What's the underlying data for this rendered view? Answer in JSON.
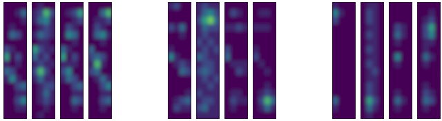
{
  "chart_data": [
    {
      "type": "heatmap",
      "color": "viridis",
      "zlim": [
        0,
        9
      ],
      "tick_labels": false,
      "cells": [
        [
          0,
          0,
          0,
          0
        ],
        [
          0,
          0,
          1,
          3
        ],
        [
          0,
          0,
          0,
          1
        ],
        [
          0,
          1,
          0,
          0
        ],
        [
          0,
          3,
          2,
          0
        ],
        [
          0,
          0,
          0,
          0
        ],
        [
          2,
          1,
          0,
          0
        ],
        [
          5,
          0,
          2,
          0
        ],
        [
          1,
          0,
          1,
          0
        ],
        [
          3,
          2,
          0,
          0
        ],
        [
          1,
          4,
          1,
          0
        ],
        [
          0,
          0,
          2,
          3
        ],
        [
          0,
          0,
          1,
          1
        ],
        [
          0,
          0,
          2,
          4
        ],
        [
          0,
          0,
          1,
          1
        ],
        [
          0,
          0,
          0,
          0
        ]
      ]
    },
    {
      "type": "heatmap",
      "color": "viridis",
      "zlim": [
        0,
        9
      ],
      "tick_labels": false,
      "cells": [
        [
          0,
          1,
          0,
          0
        ],
        [
          1,
          2,
          6,
          2
        ],
        [
          1,
          3,
          4,
          1
        ],
        [
          0,
          1,
          2,
          1
        ],
        [
          1,
          3,
          2,
          1
        ],
        [
          0,
          1,
          1,
          0
        ],
        [
          5,
          2,
          1,
          1
        ],
        [
          3,
          1,
          2,
          0
        ],
        [
          1,
          2,
          1,
          1
        ],
        [
          2,
          6,
          2,
          0
        ],
        [
          1,
          3,
          1,
          1
        ],
        [
          0,
          1,
          2,
          2
        ],
        [
          0,
          1,
          3,
          1
        ],
        [
          0,
          1,
          2,
          1
        ],
        [
          0,
          0,
          1,
          0
        ],
        [
          0,
          1,
          0,
          0
        ]
      ]
    },
    {
      "type": "heatmap",
      "color": "viridis",
      "zlim": [
        0,
        9
      ],
      "tick_labels": false,
      "cells": [
        [
          0,
          0,
          0,
          0
        ],
        [
          0,
          1,
          2,
          5
        ],
        [
          0,
          0,
          1,
          2
        ],
        [
          0,
          2,
          1,
          0
        ],
        [
          0,
          4,
          3,
          0
        ],
        [
          0,
          0,
          1,
          0
        ],
        [
          3,
          1,
          0,
          0
        ],
        [
          5,
          0,
          2,
          0
        ],
        [
          1,
          1,
          1,
          0
        ],
        [
          2,
          4,
          0,
          0
        ],
        [
          1,
          3,
          2,
          0
        ],
        [
          0,
          0,
          2,
          3
        ],
        [
          0,
          0,
          1,
          1
        ],
        [
          0,
          0,
          3,
          2
        ],
        [
          0,
          0,
          1,
          0
        ],
        [
          0,
          0,
          0,
          0
        ]
      ]
    },
    {
      "type": "heatmap",
      "color": "viridis",
      "zlim": [
        0,
        9
      ],
      "tick_labels": false,
      "cells": [
        [
          0,
          0,
          0,
          0
        ],
        [
          0,
          0,
          3,
          6
        ],
        [
          0,
          1,
          1,
          2
        ],
        [
          0,
          2,
          1,
          0
        ],
        [
          0,
          3,
          4,
          1
        ],
        [
          0,
          0,
          1,
          0
        ],
        [
          3,
          0,
          0,
          0
        ],
        [
          2,
          3,
          2,
          0
        ],
        [
          1,
          6,
          1,
          0
        ],
        [
          2,
          3,
          0,
          0
        ],
        [
          0,
          1,
          3,
          1
        ],
        [
          0,
          0,
          2,
          4
        ],
        [
          0,
          0,
          1,
          1
        ],
        [
          0,
          0,
          2,
          3
        ],
        [
          0,
          0,
          1,
          0
        ],
        [
          0,
          0,
          0,
          0
        ]
      ]
    },
    {
      "type": "heatmap",
      "color": "viridis",
      "zlim": [
        0,
        9
      ],
      "tick_labels": false,
      "cells": [
        [
          1,
          2,
          0,
          0
        ],
        [
          0,
          0,
          0,
          0
        ],
        [
          0,
          0,
          0,
          0
        ],
        [
          2,
          1,
          3,
          0
        ],
        [
          0,
          0,
          1,
          0
        ],
        [
          0,
          0,
          0,
          0
        ],
        [
          1,
          0,
          0,
          0
        ],
        [
          4,
          1,
          0,
          0
        ],
        [
          0,
          1,
          2,
          1
        ],
        [
          0,
          0,
          3,
          2
        ],
        [
          0,
          0,
          0,
          0
        ],
        [
          0,
          0,
          0,
          0
        ],
        [
          0,
          0,
          0,
          1
        ],
        [
          0,
          1,
          2,
          3
        ],
        [
          0,
          2,
          1,
          1
        ],
        [
          0,
          0,
          0,
          0
        ]
      ]
    },
    {
      "type": "heatmap",
      "color": "viridis",
      "zlim": [
        0,
        9
      ],
      "tick_labels": false,
      "cells": [
        [
          1,
          2,
          1,
          1
        ],
        [
          1,
          3,
          4,
          2
        ],
        [
          2,
          5,
          7,
          3
        ],
        [
          1,
          3,
          2,
          2
        ],
        [
          1,
          2,
          1,
          1
        ],
        [
          2,
          1,
          2,
          1
        ],
        [
          1,
          2,
          1,
          2
        ],
        [
          3,
          2,
          1,
          1
        ],
        [
          1,
          2,
          2,
          1
        ],
        [
          2,
          3,
          2,
          1
        ],
        [
          1,
          2,
          1,
          2
        ],
        [
          1,
          1,
          2,
          1
        ],
        [
          2,
          1,
          1,
          1
        ],
        [
          1,
          2,
          2,
          1
        ],
        [
          2,
          3,
          1,
          1
        ],
        [
          1,
          1,
          1,
          1
        ]
      ]
    },
    {
      "type": "heatmap",
      "color": "viridis",
      "zlim": [
        0,
        9
      ],
      "tick_labels": false,
      "cells": [
        [
          0,
          0,
          0,
          0
        ],
        [
          0,
          2,
          1,
          0
        ],
        [
          0,
          0,
          0,
          0
        ],
        [
          1,
          1,
          2,
          1
        ],
        [
          0,
          0,
          0,
          0
        ],
        [
          0,
          0,
          0,
          0
        ],
        [
          2,
          0,
          0,
          0
        ],
        [
          3,
          0,
          0,
          0
        ],
        [
          0,
          1,
          1,
          1
        ],
        [
          0,
          0,
          2,
          1
        ],
        [
          0,
          0,
          0,
          0
        ],
        [
          0,
          0,
          0,
          0
        ],
        [
          0,
          1,
          1,
          0
        ],
        [
          0,
          2,
          1,
          1
        ],
        [
          0,
          1,
          0,
          0
        ],
        [
          0,
          0,
          0,
          0
        ]
      ]
    },
    {
      "type": "heatmap",
      "color": "viridis",
      "zlim": [
        0,
        9
      ],
      "tick_labels": false,
      "cells": [
        [
          0,
          0,
          0,
          0
        ],
        [
          0,
          1,
          1,
          0
        ],
        [
          0,
          0,
          0,
          0
        ],
        [
          1,
          1,
          1,
          0
        ],
        [
          0,
          0,
          0,
          0
        ],
        [
          0,
          0,
          0,
          0
        ],
        [
          1,
          0,
          0,
          0
        ],
        [
          2,
          0,
          0,
          0
        ],
        [
          0,
          1,
          0,
          0
        ],
        [
          0,
          0,
          1,
          0
        ],
        [
          0,
          0,
          0,
          0
        ],
        [
          0,
          0,
          1,
          0
        ],
        [
          0,
          1,
          2,
          1
        ],
        [
          0,
          2,
          6,
          3
        ],
        [
          0,
          1,
          3,
          1
        ],
        [
          0,
          0,
          0,
          0
        ]
      ]
    },
    {
      "type": "heatmap",
      "color": "viridis",
      "zlim": [
        0,
        9
      ],
      "tick_labels": false,
      "cells": [
        [
          1,
          0,
          0,
          0
        ],
        [
          4,
          1,
          0,
          0
        ],
        [
          2,
          0,
          0,
          0
        ],
        [
          0,
          0,
          0,
          0
        ],
        [
          0,
          0,
          0,
          0
        ],
        [
          0,
          0,
          0,
          0
        ],
        [
          0,
          0,
          0,
          0
        ],
        [
          0,
          0,
          0,
          0
        ],
        [
          0,
          0,
          0,
          0
        ],
        [
          0,
          0,
          0,
          0
        ],
        [
          0,
          0,
          0,
          0
        ],
        [
          0,
          0,
          0,
          0
        ],
        [
          0,
          0,
          0,
          0
        ],
        [
          3,
          0,
          0,
          0
        ],
        [
          1,
          0,
          0,
          0
        ],
        [
          0,
          0,
          0,
          0
        ]
      ]
    },
    {
      "type": "heatmap",
      "color": "viridis",
      "zlim": [
        0,
        9
      ],
      "tick_labels": false,
      "cells": [
        [
          0,
          1,
          1,
          0
        ],
        [
          0,
          2,
          1,
          0
        ],
        [
          0,
          2,
          1,
          0
        ],
        [
          0,
          1,
          1,
          0
        ],
        [
          0,
          2,
          1,
          0
        ],
        [
          0,
          1,
          1,
          0
        ],
        [
          0,
          2,
          1,
          0
        ],
        [
          0,
          1,
          1,
          0
        ],
        [
          0,
          2,
          1,
          0
        ],
        [
          0,
          1,
          2,
          0
        ],
        [
          0,
          1,
          1,
          0
        ],
        [
          0,
          2,
          1,
          0
        ],
        [
          0,
          2,
          1,
          0
        ],
        [
          0,
          5,
          2,
          0
        ],
        [
          0,
          3,
          1,
          0
        ],
        [
          0,
          1,
          0,
          0
        ]
      ]
    },
    {
      "type": "heatmap",
      "color": "viridis",
      "zlim": [
        0,
        9
      ],
      "tick_labels": false,
      "cells": [
        [
          0,
          0,
          0,
          0
        ],
        [
          0,
          0,
          0,
          0
        ],
        [
          0,
          0,
          0,
          0
        ],
        [
          0,
          2,
          1,
          0
        ],
        [
          0,
          3,
          1,
          0
        ],
        [
          0,
          1,
          0,
          0
        ],
        [
          0,
          0,
          0,
          0
        ],
        [
          0,
          4,
          0,
          0
        ],
        [
          0,
          1,
          0,
          0
        ],
        [
          0,
          0,
          0,
          0
        ],
        [
          0,
          0,
          0,
          0
        ],
        [
          0,
          0,
          0,
          0
        ],
        [
          0,
          1,
          0,
          0
        ],
        [
          0,
          3,
          1,
          0
        ],
        [
          0,
          1,
          0,
          0
        ],
        [
          0,
          0,
          0,
          0
        ]
      ]
    },
    {
      "type": "heatmap",
      "color": "viridis",
      "zlim": [
        0,
        9
      ],
      "tick_labels": false,
      "cells": [
        [
          0,
          0,
          0,
          0
        ],
        [
          0,
          0,
          1,
          0
        ],
        [
          0,
          1,
          2,
          0
        ],
        [
          0,
          2,
          5,
          0
        ],
        [
          0,
          2,
          4,
          0
        ],
        [
          0,
          1,
          1,
          0
        ],
        [
          0,
          1,
          0,
          0
        ],
        [
          0,
          3,
          1,
          0
        ],
        [
          0,
          1,
          0,
          0
        ],
        [
          0,
          0,
          0,
          0
        ],
        [
          0,
          0,
          0,
          0
        ],
        [
          0,
          1,
          0,
          0
        ],
        [
          0,
          2,
          1,
          0
        ],
        [
          0,
          3,
          2,
          0
        ],
        [
          0,
          1,
          0,
          0
        ],
        [
          0,
          0,
          0,
          0
        ]
      ]
    }
  ]
}
